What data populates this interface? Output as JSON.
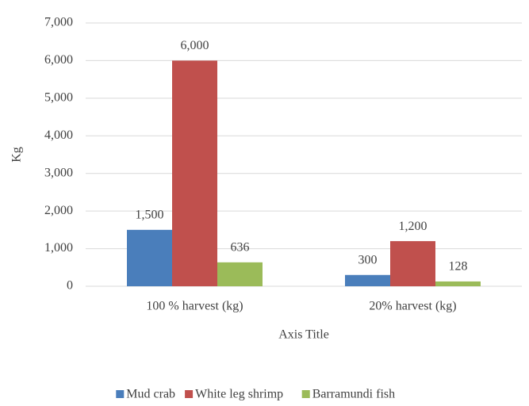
{
  "chart_data": {
    "type": "bar",
    "categories": [
      "100 % harvest (kg)",
      "20% harvest (kg)"
    ],
    "series": [
      {
        "name": "Mud crab",
        "color": "#4a7ebb",
        "values": [
          1500,
          300
        ],
        "value_labels": [
          "1,500",
          "300"
        ]
      },
      {
        "name": "White leg shrimp",
        "color": "#c0504d",
        "values": [
          6000,
          1200
        ],
        "value_labels": [
          "6,000",
          "1,200"
        ]
      },
      {
        "name": "Barramundi fish",
        "color": "#9bbb59",
        "values": [
          636,
          128
        ],
        "value_labels": [
          "636",
          "128"
        ]
      }
    ],
    "ylim": [
      0,
      7000
    ],
    "yticks": [
      0,
      {
        "value": 1000,
        "label": "1,000"
      },
      {
        "value": 2000,
        "label": "2,000"
      },
      {
        "value": 3000,
        "label": "3,000"
      },
      {
        "value": 4000,
        "label": "4,000"
      },
      {
        "value": 5000,
        "label": "5,000"
      },
      {
        "value": 6000,
        "label": "6,000"
      },
      {
        "value": 7000,
        "label": "7,000"
      }
    ],
    "ylabel": "Kg",
    "xlabel": "Axis Title",
    "grid": true,
    "legend": "bottom"
  }
}
